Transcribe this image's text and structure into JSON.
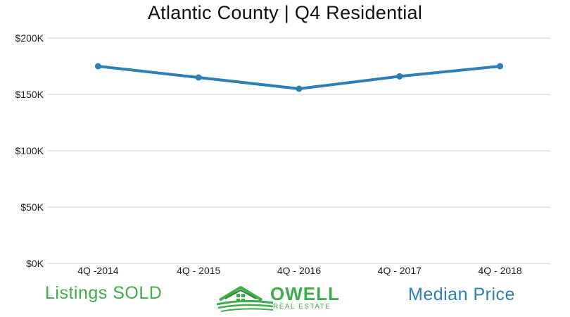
{
  "chart_data": {
    "type": "line",
    "title": "Atlantic County | Q4 Residential",
    "xlabel": "",
    "ylabel": "",
    "categories": [
      "4Q -2014",
      "4Q - 2015",
      "4Q - 2016",
      "4Q - 2017",
      "4Q - 2018"
    ],
    "series": [
      {
        "values": [
          175000,
          165000,
          155000,
          166000,
          175000
        ]
      }
    ],
    "ylim": [
      0,
      200000
    ],
    "yticks": [
      0,
      50000,
      100000,
      150000,
      200000
    ],
    "ytick_labels": [
      "$0K",
      "$50K",
      "$100K",
      "$150K",
      "$200K"
    ],
    "grid": true,
    "legend": "none",
    "line_color": "#2d7fb8"
  },
  "footer": {
    "left_label": "Listings SOLD",
    "right_label": "Median Price",
    "left_color": "#3fae49",
    "right_color": "#2d7fb8"
  },
  "logo": {
    "word": "OWELL",
    "sub": "REAL ESTATE",
    "color": "#3fae49"
  }
}
